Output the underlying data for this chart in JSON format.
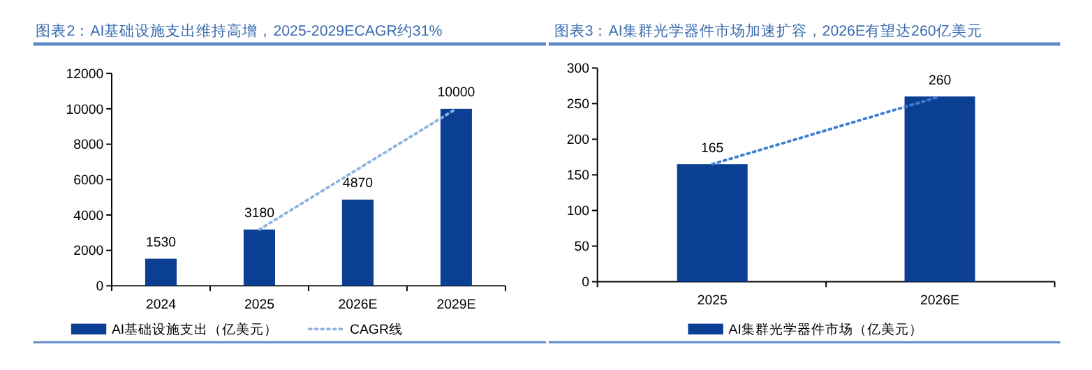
{
  "chart_data": [
    {
      "type": "bar",
      "title": "图表2：AI基础设施支出维持高增，2025-2029ECAGR约31%",
      "categories": [
        "2024",
        "2025",
        "2026E",
        "2029E"
      ],
      "series": [
        {
          "name": "AI基础设施支出（亿美元）",
          "color": "#0b3f93",
          "values": [
            1530,
            3180,
            4870,
            10000
          ],
          "value_labels": [
            "1530",
            "3180",
            "4870",
            "10000"
          ]
        },
        {
          "name": "CAGR线",
          "type": "line",
          "color": "#8fb3e0",
          "values": [
            null,
            3180,
            6590,
            10000
          ]
        }
      ],
      "ylim": [
        0,
        12000
      ],
      "yticks": [
        0,
        2000,
        4000,
        6000,
        8000,
        10000,
        12000
      ],
      "legend": "bottom",
      "line_style": "dotted"
    },
    {
      "type": "bar",
      "title": "图表3：AI集群光学器件市场加速扩容，2026E有望达260亿美元",
      "categories": [
        "2025",
        "2026E"
      ],
      "series": [
        {
          "name": "AI集群光学器件市场（亿美元）",
          "color": "#0b3f93",
          "values": [
            165,
            260
          ],
          "value_labels": [
            "165",
            "260"
          ]
        },
        {
          "type": "line",
          "color": "#3d7fd0",
          "values": [
            165,
            260
          ]
        }
      ],
      "ylim": [
        0,
        300
      ],
      "yticks": [
        0,
        50,
        100,
        150,
        200,
        250,
        300
      ],
      "legend": "bottom",
      "line_style": "dotted"
    }
  ]
}
